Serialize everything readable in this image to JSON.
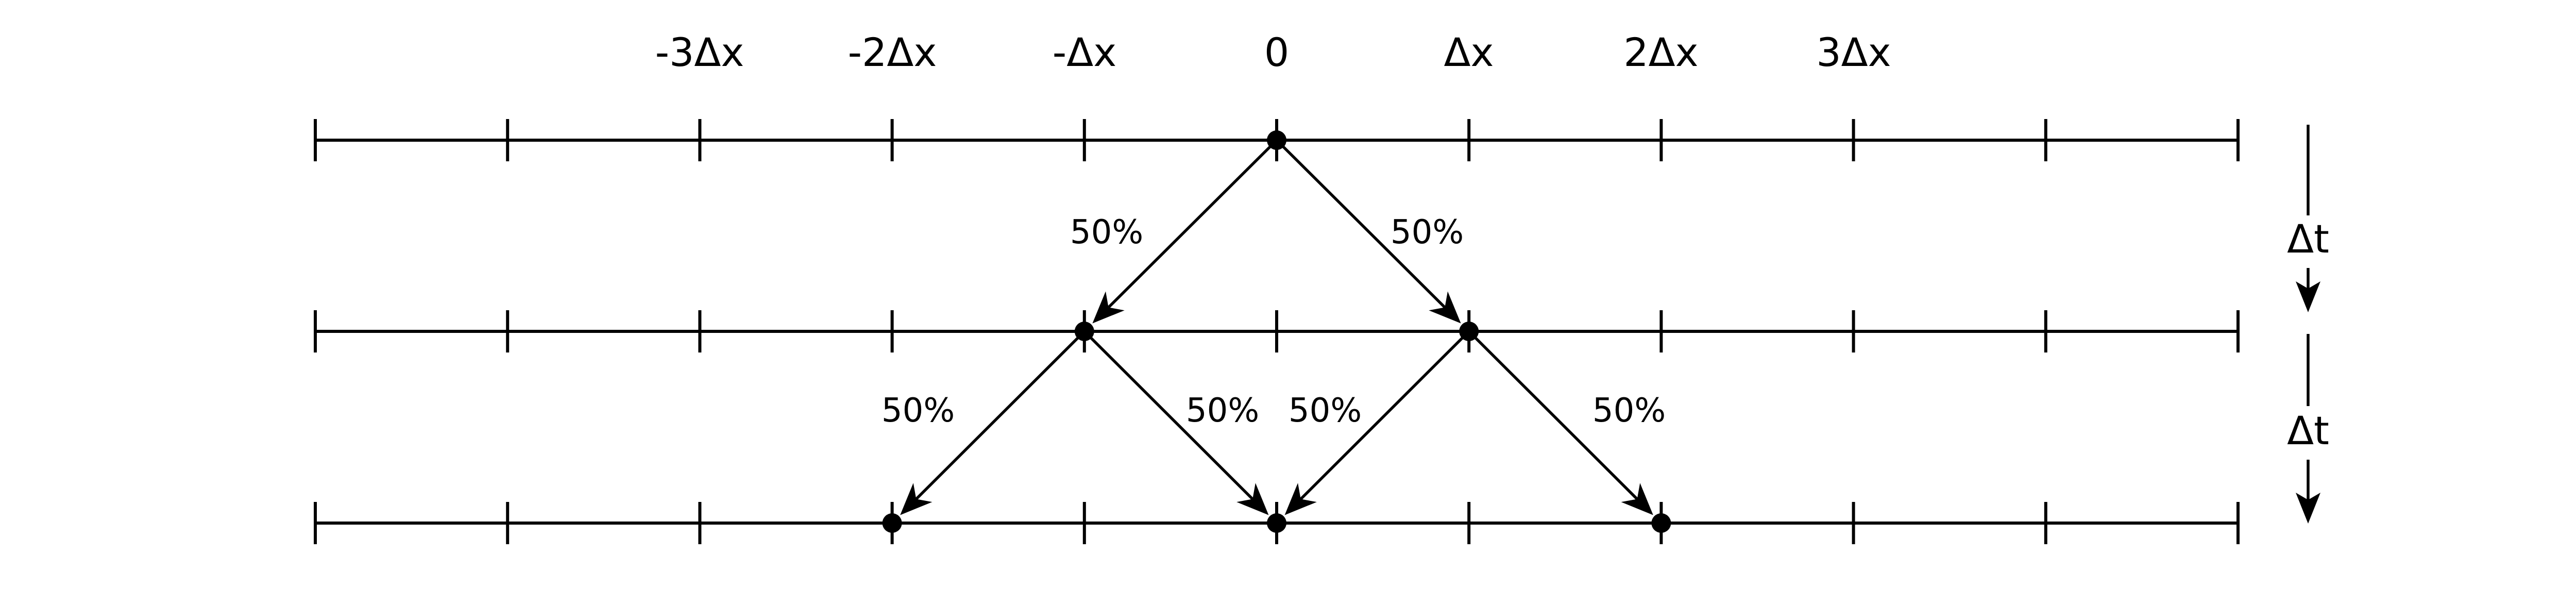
{
  "x_labels": [
    "-3Δx",
    "-2Δx",
    "-Δx",
    "0",
    "Δx",
    "2Δx",
    "3Δx"
  ],
  "time_step_label": "Δt",
  "probability_label": "50%",
  "walk_levels": [
    {
      "occupied_positions": [
        0
      ]
    },
    {
      "occupied_positions": [
        -1,
        1
      ]
    },
    {
      "occupied_positions": [
        -2,
        0,
        2
      ]
    }
  ],
  "transitions": [
    {
      "level": 0,
      "from": 0,
      "to": -1,
      "probability": "50%"
    },
    {
      "level": 0,
      "from": 0,
      "to": 1,
      "probability": "50%"
    },
    {
      "level": 1,
      "from": -1,
      "to": -2,
      "probability": "50%"
    },
    {
      "level": 1,
      "from": -1,
      "to": 0,
      "probability": "50%"
    },
    {
      "level": 1,
      "from": 1,
      "to": 0,
      "probability": "50%"
    },
    {
      "level": 1,
      "from": 1,
      "to": 2,
      "probability": "50%"
    }
  ],
  "tick_positions": [
    -5,
    -4,
    -3,
    -2,
    -1,
    0,
    1,
    2,
    3,
    4,
    5
  ]
}
